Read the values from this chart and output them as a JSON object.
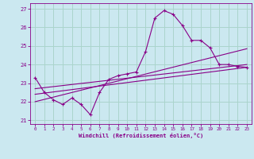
{
  "xlabel": "Windchill (Refroidissement éolien,°C)",
  "background_color": "#cbe8f0",
  "grid_color": "#aad4cc",
  "line_color": "#880088",
  "xlim": [
    -0.5,
    23.5
  ],
  "ylim": [
    20.8,
    27.3
  ],
  "xticks": [
    0,
    1,
    2,
    3,
    4,
    5,
    6,
    7,
    8,
    9,
    10,
    11,
    12,
    13,
    14,
    15,
    16,
    17,
    18,
    19,
    20,
    21,
    22,
    23
  ],
  "yticks": [
    21,
    22,
    23,
    24,
    25,
    26,
    27
  ],
  "series1_x": [
    0,
    1,
    2,
    3,
    4,
    5,
    6,
    7,
    8,
    9,
    10,
    11,
    12,
    13,
    14,
    15,
    16,
    17,
    18,
    19,
    20,
    21,
    22,
    23
  ],
  "series1_y": [
    23.3,
    22.5,
    22.1,
    21.85,
    22.2,
    21.85,
    21.3,
    22.5,
    23.2,
    23.4,
    23.5,
    23.6,
    24.7,
    26.5,
    26.9,
    26.7,
    26.1,
    25.3,
    25.3,
    24.9,
    24.0,
    24.0,
    23.9,
    23.85
  ],
  "series2_x": [
    0,
    23
  ],
  "series2_y": [
    22.7,
    24.0
  ],
  "series3_x": [
    0,
    23
  ],
  "series3_y": [
    22.4,
    23.85
  ],
  "series4_x": [
    0,
    23
  ],
  "series4_y": [
    22.0,
    24.85
  ]
}
